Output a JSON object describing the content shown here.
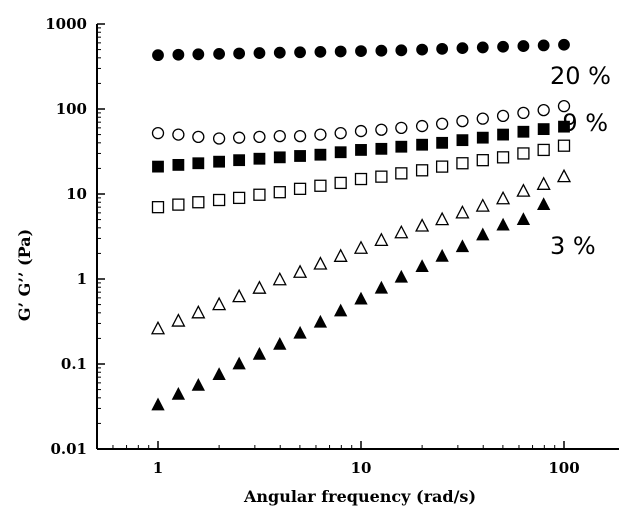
{
  "chart_data": {
    "type": "scatter",
    "xlabel": "Angular frequency (rad/s)",
    "ylabel": "G’ G’’ (Pa)",
    "x_scale": "log",
    "y_scale": "log",
    "xlim": [
      0.5,
      150
    ],
    "ylim": [
      0.01,
      1000
    ],
    "x_ticks": [
      {
        "value": 1,
        "label": "1"
      },
      {
        "value": 10,
        "label": "10"
      },
      {
        "value": 100,
        "label": "100"
      }
    ],
    "y_ticks": [
      {
        "value": 0.01,
        "label": "0.01"
      },
      {
        "value": 0.1,
        "label": "0.1"
      },
      {
        "value": 1,
        "label": "1"
      },
      {
        "value": 10,
        "label": "10"
      },
      {
        "value": 100,
        "label": "100"
      },
      {
        "value": 1000,
        "label": "1000"
      }
    ],
    "grid": false,
    "annotations": [
      {
        "text": "20 %",
        "x": 100,
        "y": 250
      },
      {
        "text": "9 %",
        "x": 115,
        "y": 70
      },
      {
        "text": "3 %",
        "x": 100,
        "y": 2.5
      }
    ],
    "series": [
      {
        "marker": "circle",
        "filled": true,
        "color": "#000000",
        "x": [
          1,
          1.26,
          1.58,
          2,
          2.51,
          3.16,
          3.98,
          5.01,
          6.31,
          7.94,
          10,
          12.6,
          15.8,
          20,
          25.1,
          31.6,
          39.8,
          50.1,
          63.1,
          79.4,
          100
        ],
        "y": [
          430,
          435,
          440,
          445,
          450,
          455,
          460,
          465,
          470,
          475,
          480,
          485,
          490,
          500,
          510,
          520,
          530,
          540,
          550,
          560,
          570
        ]
      },
      {
        "marker": "circle",
        "filled": false,
        "color": "#000000",
        "x": [
          1,
          1.26,
          1.58,
          2,
          2.51,
          3.16,
          3.98,
          5.01,
          6.31,
          7.94,
          10,
          12.6,
          15.8,
          20,
          25.1,
          31.6,
          39.8,
          50.1,
          63.1,
          79.4,
          100
        ],
        "y": [
          52,
          50,
          47,
          45,
          46,
          47,
          48,
          48,
          50,
          52,
          55,
          57,
          60,
          63,
          67,
          72,
          77,
          83,
          90,
          97,
          108
        ]
      },
      {
        "marker": "square",
        "filled": true,
        "color": "#000000",
        "x": [
          1,
          1.26,
          1.58,
          2,
          2.51,
          3.16,
          3.98,
          5.01,
          6.31,
          7.94,
          10,
          12.6,
          15.8,
          20,
          25.1,
          31.6,
          39.8,
          50.1,
          63.1,
          79.4,
          100
        ],
        "y": [
          21,
          22,
          23,
          24,
          25,
          26,
          27,
          28,
          29,
          31,
          33,
          34,
          36,
          38,
          40,
          43,
          46,
          50,
          54,
          58,
          62
        ]
      },
      {
        "marker": "square",
        "filled": false,
        "color": "#000000",
        "x": [
          1,
          1.26,
          1.58,
          2,
          2.51,
          3.16,
          3.98,
          5.01,
          6.31,
          7.94,
          10,
          12.6,
          15.8,
          20,
          25.1,
          31.6,
          39.8,
          50.1,
          63.1,
          79.4,
          100
        ],
        "y": [
          7,
          7.5,
          8,
          8.5,
          9,
          9.8,
          10.5,
          11.5,
          12.5,
          13.5,
          15,
          16,
          17.5,
          19,
          21,
          23,
          25,
          27,
          30,
          33,
          37
        ]
      },
      {
        "marker": "triangle",
        "filled": false,
        "color": "#000000",
        "x": [
          1,
          1.26,
          1.58,
          2,
          2.51,
          3.16,
          3.98,
          5.01,
          6.31,
          7.94,
          10,
          12.6,
          15.8,
          20,
          25.1,
          31.6,
          39.8,
          50.1,
          63.1,
          79.4,
          100
        ],
        "y": [
          0.26,
          0.32,
          0.4,
          0.5,
          0.62,
          0.78,
          0.98,
          1.2,
          1.5,
          1.85,
          2.3,
          2.85,
          3.5,
          4.2,
          5,
          6,
          7.2,
          8.8,
          10.8,
          13,
          16
        ]
      },
      {
        "marker": "triangle",
        "filled": true,
        "color": "#000000",
        "x": [
          1,
          1.26,
          1.58,
          2,
          2.51,
          3.16,
          3.98,
          5.01,
          6.31,
          7.94,
          10,
          12.6,
          15.8,
          20,
          25.1,
          31.6,
          39.8,
          50.1,
          63.1,
          79.4
        ],
        "y": [
          0.033,
          0.044,
          0.056,
          0.075,
          0.1,
          0.13,
          0.17,
          0.23,
          0.31,
          0.42,
          0.58,
          0.78,
          1.05,
          1.4,
          1.85,
          2.4,
          3.3,
          4.3,
          5,
          7.5
        ]
      }
    ]
  }
}
